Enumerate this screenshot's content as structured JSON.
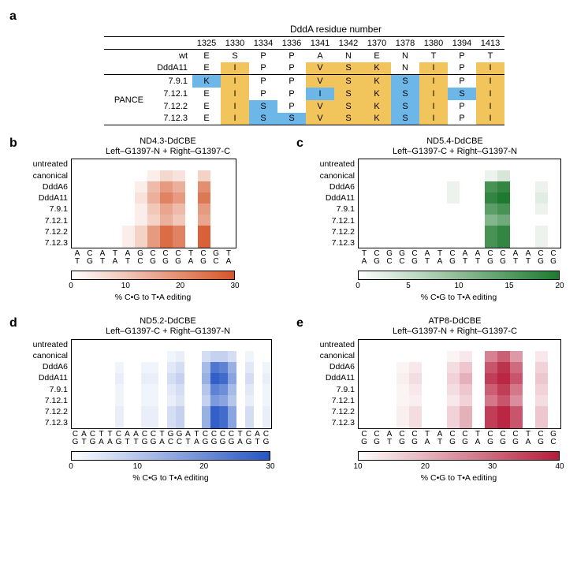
{
  "panel_a": {
    "label": "a",
    "title": "DddA residue number",
    "columns": [
      "1325",
      "1330",
      "1334",
      "1336",
      "1341",
      "1342",
      "1370",
      "1378",
      "1380",
      "1394",
      "1413"
    ],
    "group_label": "PANCE",
    "rows": [
      {
        "name": "wt",
        "cells": [
          {
            "v": "E"
          },
          {
            "v": "S"
          },
          {
            "v": "P"
          },
          {
            "v": "P"
          },
          {
            "v": "A"
          },
          {
            "v": "N"
          },
          {
            "v": "E"
          },
          {
            "v": "N"
          },
          {
            "v": "T"
          },
          {
            "v": "P"
          },
          {
            "v": "T"
          }
        ]
      },
      {
        "name": "DddA11",
        "cells": [
          {
            "v": "E"
          },
          {
            "v": "I",
            "c": "yellow"
          },
          {
            "v": "P"
          },
          {
            "v": "P"
          },
          {
            "v": "V",
            "c": "yellow"
          },
          {
            "v": "S",
            "c": "yellow"
          },
          {
            "v": "K",
            "c": "yellow"
          },
          {
            "v": "N"
          },
          {
            "v": "I",
            "c": "yellow"
          },
          {
            "v": "P"
          },
          {
            "v": "I",
            "c": "yellow"
          }
        ]
      },
      {
        "name": "7.9.1",
        "cells": [
          {
            "v": "K",
            "c": "blue"
          },
          {
            "v": "I",
            "c": "yellow"
          },
          {
            "v": "P"
          },
          {
            "v": "P"
          },
          {
            "v": "V",
            "c": "yellow"
          },
          {
            "v": "S",
            "c": "yellow"
          },
          {
            "v": "K",
            "c": "yellow"
          },
          {
            "v": "S",
            "c": "blue"
          },
          {
            "v": "I",
            "c": "yellow"
          },
          {
            "v": "P"
          },
          {
            "v": "I",
            "c": "yellow"
          }
        ]
      },
      {
        "name": "7.12.1",
        "cells": [
          {
            "v": "E"
          },
          {
            "v": "I",
            "c": "yellow"
          },
          {
            "v": "P"
          },
          {
            "v": "P"
          },
          {
            "v": "I",
            "c": "blue"
          },
          {
            "v": "S",
            "c": "yellow"
          },
          {
            "v": "K",
            "c": "yellow"
          },
          {
            "v": "S",
            "c": "blue"
          },
          {
            "v": "I",
            "c": "yellow"
          },
          {
            "v": "S",
            "c": "blue"
          },
          {
            "v": "I",
            "c": "yellow"
          }
        ]
      },
      {
        "name": "7.12.2",
        "cells": [
          {
            "v": "E"
          },
          {
            "v": "I",
            "c": "yellow"
          },
          {
            "v": "S",
            "c": "blue"
          },
          {
            "v": "P"
          },
          {
            "v": "V",
            "c": "yellow"
          },
          {
            "v": "S",
            "c": "yellow"
          },
          {
            "v": "K",
            "c": "yellow"
          },
          {
            "v": "S",
            "c": "blue"
          },
          {
            "v": "I",
            "c": "yellow"
          },
          {
            "v": "P"
          },
          {
            "v": "I",
            "c": "yellow"
          }
        ]
      },
      {
        "name": "7.12.3",
        "cells": [
          {
            "v": "E"
          },
          {
            "v": "I",
            "c": "yellow"
          },
          {
            "v": "S",
            "c": "blue"
          },
          {
            "v": "S",
            "c": "blue"
          },
          {
            "v": "V",
            "c": "yellow"
          },
          {
            "v": "S",
            "c": "yellow"
          },
          {
            "v": "K",
            "c": "yellow"
          },
          {
            "v": "S",
            "c": "blue"
          },
          {
            "v": "I",
            "c": "yellow"
          },
          {
            "v": "P"
          },
          {
            "v": "I",
            "c": "yellow"
          }
        ]
      }
    ],
    "colors": {
      "yellow": "#f2c55c",
      "blue": "#6db6e8"
    }
  },
  "heatmaps": [
    {
      "label": "b",
      "title_line1": "ND4.3-DdCBE",
      "title_line2": "Left–G1397-N + Right–G1397-C",
      "y": [
        "untreated",
        "canonical",
        "DddA6",
        "DddA11",
        "7.9.1",
        "7.12.1",
        "7.12.2",
        "7.12.3"
      ],
      "x_top": [
        "A",
        "C",
        "A",
        "T",
        "A",
        "G",
        "C",
        "C",
        "C",
        "T",
        "C",
        "G",
        "T"
      ],
      "x_bot": [
        "T",
        "G",
        "T",
        "A",
        "T",
        "C",
        "G",
        "G",
        "G",
        "A",
        "G",
        "C",
        "A"
      ],
      "ncols": 13,
      "values": [
        [
          0,
          0,
          0,
          0,
          0,
          0,
          0,
          0,
          0,
          0,
          0,
          0,
          0
        ],
        [
          0,
          0,
          0,
          0,
          0,
          0,
          3,
          7,
          5,
          0,
          8,
          0,
          0
        ],
        [
          0,
          0,
          0,
          0,
          0,
          3,
          12,
          18,
          14,
          0,
          20,
          0,
          0
        ],
        [
          0,
          0,
          0,
          0,
          0,
          5,
          14,
          22,
          18,
          0,
          24,
          0,
          0
        ],
        [
          0,
          0,
          0,
          0,
          0,
          3,
          10,
          16,
          12,
          0,
          18,
          0,
          0
        ],
        [
          0,
          0,
          0,
          0,
          0,
          3,
          8,
          14,
          10,
          0,
          16,
          0,
          0
        ],
        [
          0,
          0,
          0,
          0,
          3,
          8,
          18,
          26,
          22,
          0,
          28,
          0,
          0
        ],
        [
          0,
          0,
          0,
          0,
          3,
          8,
          18,
          26,
          22,
          0,
          28,
          0,
          0
        ]
      ],
      "vmax": 30,
      "color_hi": "#d5562a",
      "ticks": [
        0,
        10,
        20,
        30
      ],
      "cbar_label": "% C•G to T•A editing"
    },
    {
      "label": "c",
      "title_line1": "ND5.4-DdCBE",
      "title_line2": "Left–G1397-C + Right–G1397-N",
      "y": [
        "untreated",
        "canonical",
        "DddA6",
        "DddA11",
        "7.9.1",
        "7.12.1",
        "7.12.2",
        "7.12.3"
      ],
      "x_top": [
        "T",
        "C",
        "G",
        "G",
        "C",
        "A",
        "T",
        "C",
        "A",
        "A",
        "C",
        "C",
        "A",
        "A",
        "C",
        "C"
      ],
      "x_bot": [
        "A",
        "G",
        "C",
        "C",
        "G",
        "T",
        "A",
        "G",
        "T",
        "T",
        "G",
        "G",
        "T",
        "T",
        "G",
        "G"
      ],
      "ncols": 16,
      "values": [
        [
          0,
          0,
          0,
          0,
          0,
          0,
          0,
          0,
          0,
          0,
          0,
          0,
          0,
          0,
          0,
          0
        ],
        [
          0,
          0,
          0,
          0,
          0,
          0,
          0,
          0,
          0,
          0,
          2,
          4,
          0,
          0,
          0,
          0
        ],
        [
          0,
          0,
          0,
          0,
          0,
          0,
          0,
          2,
          0,
          0,
          18,
          20,
          0,
          0,
          2,
          0
        ],
        [
          0,
          0,
          0,
          0,
          0,
          0,
          0,
          2,
          0,
          0,
          20,
          22,
          0,
          0,
          3,
          0
        ],
        [
          0,
          0,
          0,
          0,
          0,
          0,
          0,
          0,
          0,
          0,
          16,
          18,
          0,
          0,
          2,
          0
        ],
        [
          0,
          0,
          0,
          0,
          0,
          0,
          0,
          0,
          0,
          0,
          12,
          14,
          0,
          0,
          0,
          0
        ],
        [
          0,
          0,
          0,
          0,
          0,
          0,
          0,
          0,
          0,
          0,
          18,
          20,
          0,
          0,
          2,
          0
        ],
        [
          0,
          0,
          0,
          0,
          0,
          0,
          0,
          0,
          0,
          0,
          18,
          20,
          0,
          0,
          2,
          0
        ]
      ],
      "vmax": 22,
      "color_hi": "#1e7a2e",
      "ticks": [
        0,
        5,
        10,
        15,
        20
      ],
      "cbar_label": "% C•G to T•A editing"
    },
    {
      "label": "d",
      "title_line1": "ND5.2-DdCBE",
      "title_line2": "Left–G1397-C + Right–G1397-N",
      "y": [
        "untreated",
        "canonical",
        "DddA6",
        "DddA11",
        "7.9.1",
        "7.12.1",
        "7.12.2",
        "7.12.3"
      ],
      "x_top": [
        "C",
        "A",
        "C",
        "T",
        "T",
        "C",
        "A",
        "A",
        "C",
        "C",
        "T",
        "G",
        "G",
        "A",
        "T",
        "C",
        "C",
        "C",
        "C",
        "T",
        "C",
        "A",
        "C"
      ],
      "x_bot": [
        "G",
        "T",
        "G",
        "A",
        "A",
        "G",
        "T",
        "T",
        "G",
        "G",
        "A",
        "C",
        "C",
        "T",
        "A",
        "G",
        "G",
        "G",
        "G",
        "A",
        "G",
        "T",
        "G"
      ],
      "ncols": 23,
      "values": [
        [
          0,
          0,
          0,
          0,
          0,
          0,
          0,
          0,
          0,
          0,
          0,
          0,
          0,
          0,
          0,
          0,
          0,
          0,
          0,
          0,
          0,
          0,
          0
        ],
        [
          0,
          0,
          0,
          0,
          0,
          0,
          0,
          0,
          0,
          0,
          0,
          2,
          3,
          0,
          0,
          6,
          8,
          8,
          6,
          0,
          2,
          0,
          0
        ],
        [
          0,
          0,
          0,
          0,
          0,
          2,
          0,
          0,
          2,
          2,
          0,
          4,
          6,
          0,
          0,
          12,
          24,
          22,
          14,
          0,
          4,
          0,
          2
        ],
        [
          0,
          0,
          0,
          0,
          0,
          3,
          0,
          0,
          3,
          3,
          0,
          6,
          8,
          0,
          0,
          14,
          28,
          26,
          16,
          0,
          6,
          0,
          3
        ],
        [
          0,
          0,
          0,
          0,
          0,
          2,
          0,
          0,
          2,
          2,
          0,
          4,
          6,
          0,
          0,
          10,
          22,
          20,
          12,
          0,
          4,
          0,
          2
        ],
        [
          0,
          0,
          0,
          0,
          0,
          2,
          0,
          0,
          2,
          2,
          0,
          3,
          5,
          0,
          0,
          8,
          18,
          16,
          10,
          0,
          3,
          0,
          2
        ],
        [
          0,
          0,
          0,
          0,
          0,
          3,
          0,
          0,
          3,
          3,
          0,
          6,
          8,
          0,
          0,
          14,
          28,
          26,
          16,
          0,
          6,
          0,
          3
        ],
        [
          0,
          0,
          0,
          0,
          0,
          3,
          0,
          0,
          3,
          3,
          0,
          6,
          8,
          0,
          0,
          14,
          28,
          26,
          16,
          0,
          6,
          0,
          3
        ]
      ],
      "vmax": 30,
      "color_hi": "#2455c4",
      "ticks": [
        0,
        10,
        20,
        30
      ],
      "cbar_label": "% C•G to T•A editing"
    },
    {
      "label": "e",
      "title_line1": "ATP8-DdCBE",
      "title_line2": "Left–G1397-N + Right–G1397-C",
      "y": [
        "untreated",
        "canonical",
        "DddA6",
        "DddA11",
        "7.9.1",
        "7.12.1",
        "7.12.2",
        "7.12.3"
      ],
      "x_top": [
        "C",
        "C",
        "A",
        "C",
        "C",
        "T",
        "A",
        "C",
        "C",
        "T",
        "C",
        "C",
        "C",
        "T",
        "C",
        "G"
      ],
      "x_bot": [
        "G",
        "G",
        "T",
        "G",
        "G",
        "A",
        "T",
        "G",
        "G",
        "A",
        "G",
        "G",
        "G",
        "A",
        "G",
        "C"
      ],
      "ncols": 16,
      "values": [
        [
          0,
          0,
          0,
          0,
          0,
          0,
          0,
          0,
          0,
          0,
          0,
          0,
          0,
          0,
          0,
          0
        ],
        [
          0,
          0,
          0,
          0,
          0,
          0,
          0,
          2,
          4,
          0,
          22,
          28,
          18,
          0,
          4,
          0
        ],
        [
          0,
          0,
          0,
          2,
          4,
          0,
          0,
          6,
          10,
          0,
          30,
          36,
          26,
          0,
          8,
          0
        ],
        [
          0,
          0,
          0,
          3,
          6,
          0,
          0,
          8,
          14,
          0,
          34,
          38,
          30,
          0,
          10,
          0
        ],
        [
          0,
          0,
          0,
          2,
          4,
          0,
          0,
          6,
          10,
          0,
          28,
          34,
          24,
          0,
          8,
          0
        ],
        [
          0,
          0,
          0,
          2,
          3,
          0,
          0,
          4,
          8,
          0,
          24,
          30,
          20,
          0,
          6,
          0
        ],
        [
          0,
          0,
          0,
          3,
          6,
          0,
          0,
          8,
          14,
          0,
          34,
          38,
          30,
          0,
          10,
          0
        ],
        [
          0,
          0,
          0,
          3,
          6,
          0,
          0,
          8,
          14,
          0,
          34,
          38,
          30,
          0,
          10,
          0
        ]
      ],
      "vmax": 40,
      "color_hi": "#b51c3a",
      "ticks": [
        10,
        20,
        30,
        40
      ],
      "cbar_label": "% C•G to T•A editing"
    }
  ]
}
